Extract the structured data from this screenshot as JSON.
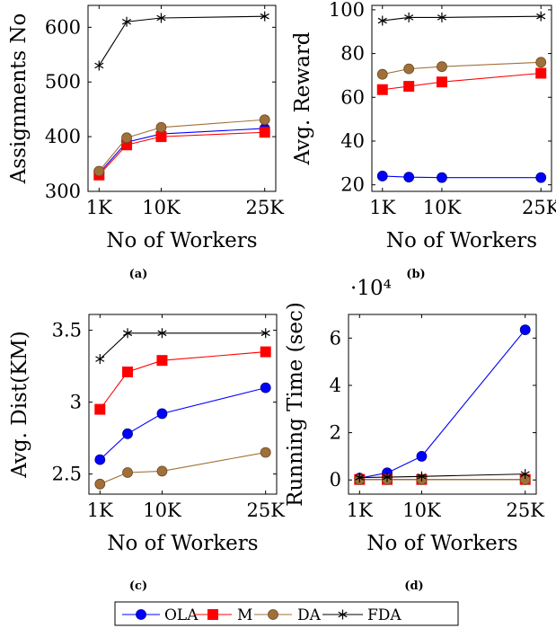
{
  "colors": {
    "OLA": "#0000ff",
    "M": "#ff0000",
    "DA": "#a0703a",
    "FDA": "#000000"
  },
  "legend": [
    {
      "key": "OLA",
      "label": "OLA",
      "marker": "circle"
    },
    {
      "key": "M",
      "label": "M",
      "marker": "square"
    },
    {
      "key": "DA",
      "label": "DA",
      "marker": "circle"
    },
    {
      "key": "FDA",
      "label": "FDA",
      "marker": "star"
    }
  ],
  "chart_data": [
    {
      "type": "line",
      "caption": "(a)",
      "xlabel": "No of Workers",
      "ylabel": "Assignments No",
      "x": [
        1000,
        5000,
        10000,
        25000
      ],
      "xticks": [
        {
          "v": 1000,
          "label": "1K"
        },
        {
          "v": 10000,
          "label": "10K"
        },
        {
          "v": 25000,
          "label": "25K"
        }
      ],
      "xlim": [
        -600,
        26600
      ],
      "ylim": [
        300,
        640
      ],
      "yticks": [
        300,
        400,
        500,
        600
      ],
      "ytick_labels": [
        "300",
        "400",
        "500",
        "600"
      ],
      "series": [
        {
          "name": "OLA",
          "values": [
            333,
            390,
            405,
            415
          ]
        },
        {
          "name": "M",
          "values": [
            330,
            385,
            400,
            408
          ]
        },
        {
          "name": "DA",
          "values": [
            337,
            398,
            417,
            431
          ]
        },
        {
          "name": "FDA",
          "values": [
            530,
            610,
            617,
            620
          ]
        }
      ]
    },
    {
      "type": "line",
      "caption": "(b)",
      "xlabel": "No of Workers",
      "ylabel": "Avg. Reward",
      "x": [
        1000,
        5000,
        10000,
        25000
      ],
      "xticks": [
        {
          "v": 1000,
          "label": "1K"
        },
        {
          "v": 10000,
          "label": "10K"
        },
        {
          "v": 25000,
          "label": "25K"
        }
      ],
      "xlim": [
        -600,
        26600
      ],
      "ylim": [
        17,
        102
      ],
      "yticks": [
        20,
        40,
        60,
        80,
        100
      ],
      "ytick_labels": [
        "20",
        "40",
        "60",
        "80",
        "100"
      ],
      "series": [
        {
          "name": "OLA",
          "values": [
            24,
            23.5,
            23.3,
            23.3
          ]
        },
        {
          "name": "M",
          "values": [
            63.5,
            65,
            67,
            71
          ]
        },
        {
          "name": "DA",
          "values": [
            70.5,
            73,
            74,
            76
          ]
        },
        {
          "name": "FDA",
          "values": [
            95,
            96.5,
            96.5,
            97
          ]
        }
      ]
    },
    {
      "type": "line",
      "caption": "(c)",
      "xlabel": "No of Workers",
      "ylabel": "Avg. Dist(KM)",
      "x": [
        1000,
        5000,
        10000,
        25000
      ],
      "xticks": [
        {
          "v": 1000,
          "label": "1K"
        },
        {
          "v": 10000,
          "label": "10K"
        },
        {
          "v": 25000,
          "label": "25K"
        }
      ],
      "xlim": [
        -600,
        26600
      ],
      "ylim": [
        2.36,
        3.61
      ],
      "yticks": [
        2.5,
        3,
        3.5
      ],
      "ytick_labels": [
        "2.5",
        "3",
        "3.5"
      ],
      "series": [
        {
          "name": "OLA",
          "values": [
            2.6,
            2.78,
            2.92,
            3.1
          ]
        },
        {
          "name": "M",
          "values": [
            2.95,
            3.21,
            3.29,
            3.35
          ]
        },
        {
          "name": "DA",
          "values": [
            2.43,
            2.51,
            2.52,
            2.65
          ]
        },
        {
          "name": "FDA",
          "values": [
            3.3,
            3.48,
            3.48,
            3.48
          ]
        }
      ]
    },
    {
      "type": "line",
      "caption": "(d)",
      "xlabel": "No of Workers",
      "ylabel": "Running Time (sec)",
      "scale_note": "·10⁴",
      "x": [
        1000,
        5000,
        10000,
        25000
      ],
      "xticks": [
        {
          "v": 1000,
          "label": "1K"
        },
        {
          "v": 10000,
          "label": "10K"
        },
        {
          "v": 25000,
          "label": "25K"
        }
      ],
      "xlim": [
        -600,
        26600
      ],
      "ylim": [
        -6000,
        70000
      ],
      "yticks": [
        0,
        20000,
        40000,
        60000
      ],
      "ytick_labels": [
        "0",
        "2",
        "4",
        "6"
      ],
      "series": [
        {
          "name": "OLA",
          "values": [
            800,
            3000,
            10000,
            63500
          ]
        },
        {
          "name": "M",
          "values": [
            200,
            200,
            200,
            200
          ]
        },
        {
          "name": "DA",
          "values": [
            100,
            100,
            100,
            100
          ]
        },
        {
          "name": "FDA",
          "values": [
            1000,
            1200,
            1500,
            2500
          ]
        }
      ]
    }
  ]
}
